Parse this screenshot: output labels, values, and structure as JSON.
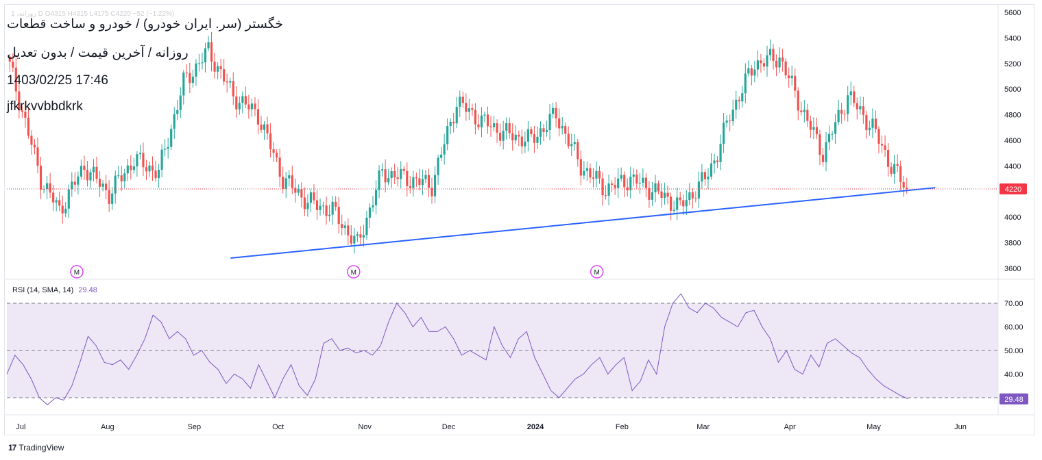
{
  "header": {
    "ohlc_text": "1 ،روزانه  D  O4315  H4315  L4175  C4220  −52 (−1.22%)",
    "title_fa": "خگستر (سر. ایران خودرو) / خودرو و ساخت قطعات",
    "subtitle_fa": "روزانه / آخرین قیمت / بدون تعدیل",
    "datetime": "1403/02/25 17:46",
    "watermark": "jfkrkvvbbdkrk"
  },
  "rsi": {
    "label": "RSI (14, SMA, 14)",
    "value": "29.48"
  },
  "footer": {
    "brand": "TradingView"
  },
  "colors": {
    "up": "#26a69a",
    "down": "#ef5350",
    "trendline": "#2962ff",
    "rsi_line": "#7e57c2",
    "rsi_band": "#ede7f6",
    "last_price": "#f23645",
    "marker": "#e040fb"
  },
  "chart_data": [
    {
      "type": "candlestick",
      "ylim": [
        3500,
        5700
      ],
      "y_ticks": [
        "5600",
        "5400",
        "5200",
        "5000",
        "4800",
        "4600",
        "4400",
        "4200",
        "4000",
        "3800",
        "3600"
      ],
      "x_tick_labels": [
        "Jul",
        "Aug",
        "Sep",
        "Oct",
        "Nov",
        "Dec",
        "2024",
        "Feb",
        "Mar",
        "Apr",
        "May",
        "Jun"
      ],
      "last_price": 4220,
      "last_price_label": "4220",
      "ohlc_anchors": [
        {
          "idx": 0,
          "close": 5180
        },
        {
          "idx": 10,
          "close": 4300
        },
        {
          "idx": 16,
          "close": 4050
        },
        {
          "idx": 24,
          "close": 4400
        },
        {
          "idx": 32,
          "close": 4180
        },
        {
          "idx": 40,
          "close": 4450
        },
        {
          "idx": 48,
          "close": 4350
        },
        {
          "idx": 56,
          "close": 5050
        },
        {
          "idx": 64,
          "close": 5300
        },
        {
          "idx": 72,
          "close": 4950
        },
        {
          "idx": 80,
          "close": 4800
        },
        {
          "idx": 88,
          "close": 4300
        },
        {
          "idx": 96,
          "close": 4120
        },
        {
          "idx": 104,
          "close": 4050
        },
        {
          "idx": 112,
          "close": 3780
        },
        {
          "idx": 120,
          "close": 4350
        },
        {
          "idx": 128,
          "close": 4300
        },
        {
          "idx": 136,
          "close": 4250
        },
        {
          "idx": 144,
          "close": 4900
        },
        {
          "idx": 152,
          "close": 4750
        },
        {
          "idx": 160,
          "close": 4650
        },
        {
          "idx": 168,
          "close": 4600
        },
        {
          "idx": 176,
          "close": 4800
        },
        {
          "idx": 184,
          "close": 4400
        },
        {
          "idx": 192,
          "close": 4220
        },
        {
          "idx": 200,
          "close": 4300
        },
        {
          "idx": 208,
          "close": 4200
        },
        {
          "idx": 216,
          "close": 4080
        },
        {
          "idx": 224,
          "close": 4300
        },
        {
          "idx": 228,
          "close": 4500
        },
        {
          "idx": 232,
          "close": 4800
        },
        {
          "idx": 240,
          "close": 5200
        },
        {
          "idx": 248,
          "close": 5250
        },
        {
          "idx": 256,
          "close": 4800
        },
        {
          "idx": 262,
          "close": 4500
        },
        {
          "idx": 270,
          "close": 4950
        },
        {
          "idx": 278,
          "close": 4700
        },
        {
          "idx": 284,
          "close": 4400
        },
        {
          "idx": 289,
          "close": 4220
        }
      ],
      "trendline": {
        "start": {
          "date": "2023-09-14",
          "price": 3680
        },
        "end": {
          "date": "2024-05-23",
          "price": 4230
        }
      },
      "markers": [
        {
          "label": "M",
          "date": "2023-07-21"
        },
        {
          "label": "M",
          "date": "2023-10-28"
        },
        {
          "label": "M",
          "date": "2024-01-23"
        }
      ]
    },
    {
      "type": "line",
      "name": "RSI (14, SMA, 14)",
      "ylim": [
        25,
        78
      ],
      "y_ticks": [
        "70.00",
        "60.00",
        "50.00",
        "40.00"
      ],
      "levels": [
        70,
        50,
        30
      ],
      "last_value": 29.48,
      "last_value_label": "29.48",
      "points": [
        40,
        48,
        44,
        38,
        30,
        27,
        30,
        29,
        35,
        45,
        56,
        52,
        45,
        44,
        46,
        42,
        48,
        55,
        65,
        62,
        55,
        58,
        55,
        48,
        50,
        45,
        42,
        36,
        40,
        38,
        34,
        44,
        37,
        30,
        38,
        44,
        35,
        31,
        38,
        53,
        55,
        50,
        51,
        49,
        50,
        48,
        52,
        62,
        70,
        66,
        60,
        64,
        58,
        58,
        60,
        55,
        48,
        50,
        48,
        46,
        60,
        52,
        47,
        55,
        58,
        47,
        40,
        33,
        30,
        34,
        38,
        40,
        44,
        47,
        40,
        44,
        47,
        33,
        37,
        46,
        40,
        60,
        70,
        74,
        68,
        66,
        70,
        68,
        64,
        62,
        60,
        66,
        67,
        60,
        55,
        45,
        50,
        42,
        40,
        48,
        43,
        53,
        55,
        52,
        49,
        47,
        42,
        38,
        35,
        33,
        31,
        29.48
      ]
    }
  ]
}
